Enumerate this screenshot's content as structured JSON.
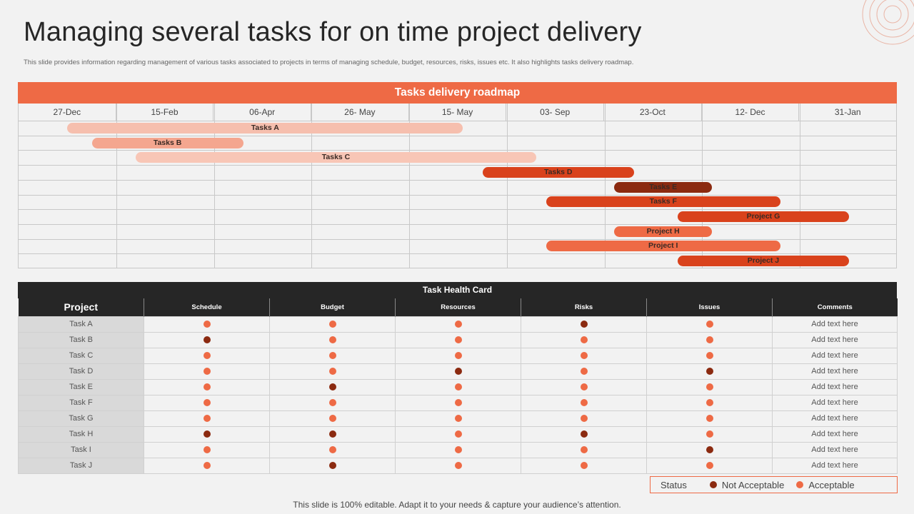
{
  "page": {
    "title": "Managing several tasks for on time project delivery",
    "subtitle": "This slide provides information regarding management  of various tasks associated to projects in terms of managing  schedule, budget, resources, risks, issues etc. It also highlights  tasks delivery roadmap.",
    "footer": "This slide is 100% editable. Adapt it to your needs & capture your audience’s attention."
  },
  "colors": {
    "accent": "#ee6a45",
    "dark": "#262626",
    "not_acceptable": "#8b2a10",
    "acceptable": "#ee6a45"
  },
  "roadmap": {
    "title": "Tasks delivery roadmap",
    "dates": [
      "27-Dec",
      "15-Feb",
      "06-Apr",
      "26- May",
      "15- May",
      "03- Sep",
      "23-Oct",
      "12- Dec",
      "31-Jan"
    ],
    "tasks": [
      {
        "label": "Tasks A",
        "start": 0.5,
        "end": 4.55,
        "color": "#f6bfae"
      },
      {
        "label": "Tasks B",
        "start": 0.75,
        "end": 2.3,
        "color": "#f4a68f"
      },
      {
        "label": "Tasks C",
        "start": 1.2,
        "end": 5.3,
        "color": "#f8c6b6"
      },
      {
        "label": "Tasks D",
        "start": 4.75,
        "end": 6.3,
        "color": "#d9421c"
      },
      {
        "label": "Tasks E",
        "start": 6.1,
        "end": 7.1,
        "color": "#8b2a10"
      },
      {
        "label": "Tasks F",
        "start": 5.4,
        "end": 7.8,
        "color": "#d9421c"
      },
      {
        "label": "Project G",
        "start": 6.75,
        "end": 8.5,
        "color": "#d9421c"
      },
      {
        "label": "Project H",
        "start": 6.1,
        "end": 7.1,
        "color": "#ee6a45"
      },
      {
        "label": "Project I",
        "start": 5.4,
        "end": 7.8,
        "color": "#ee6a45"
      },
      {
        "label": "Project J",
        "start": 6.75,
        "end": 8.5,
        "color": "#d9421c"
      }
    ]
  },
  "health_card": {
    "title": "Task Health Card",
    "columns": [
      "Project",
      "Schedule",
      "Budget",
      "Resources",
      "Risks",
      "Issues",
      "Comments"
    ],
    "rows": [
      {
        "project": "Task A",
        "status": [
          "acc",
          "acc",
          "acc",
          "nacc",
          "acc"
        ],
        "comment": "Add text here"
      },
      {
        "project": "Task B",
        "status": [
          "nacc",
          "acc",
          "acc",
          "acc",
          "acc"
        ],
        "comment": "Add text here"
      },
      {
        "project": "Task C",
        "status": [
          "acc",
          "acc",
          "acc",
          "acc",
          "acc"
        ],
        "comment": "Add text here"
      },
      {
        "project": "Task D",
        "status": [
          "acc",
          "acc",
          "nacc",
          "acc",
          "nacc"
        ],
        "comment": "Add text here"
      },
      {
        "project": "Task E",
        "status": [
          "acc",
          "nacc",
          "acc",
          "acc",
          "acc"
        ],
        "comment": "Add text here"
      },
      {
        "project": "Task F",
        "status": [
          "acc",
          "acc",
          "acc",
          "acc",
          "acc"
        ],
        "comment": "Add text here"
      },
      {
        "project": "Task G",
        "status": [
          "acc",
          "acc",
          "acc",
          "acc",
          "acc"
        ],
        "comment": "Add text here"
      },
      {
        "project": "Task H",
        "status": [
          "nacc",
          "nacc",
          "acc",
          "nacc",
          "acc"
        ],
        "comment": "Add text here"
      },
      {
        "project": "Task I",
        "status": [
          "acc",
          "acc",
          "acc",
          "acc",
          "nacc"
        ],
        "comment": "Add text here"
      },
      {
        "project": "Task J",
        "status": [
          "acc",
          "nacc",
          "acc",
          "acc",
          "acc"
        ],
        "comment": "Add text here"
      }
    ]
  },
  "legend": {
    "status": "Status",
    "not_acceptable": "Not Acceptable",
    "acceptable": "Acceptable"
  }
}
